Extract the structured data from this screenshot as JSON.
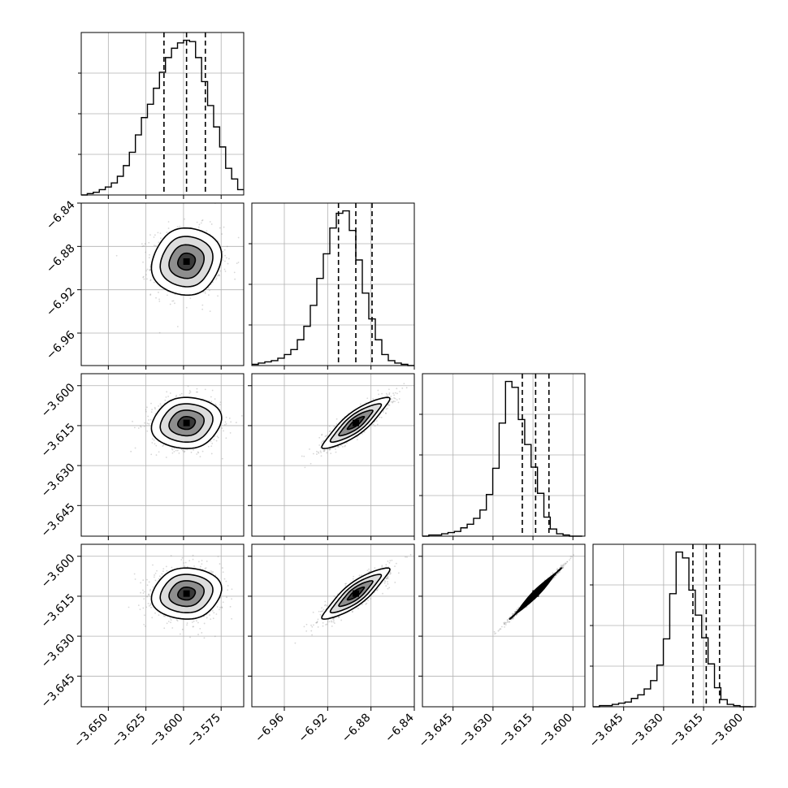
{
  "chart_data": {
    "type": "corner",
    "title": "",
    "parameters": [
      {
        "label": "",
        "range": [
          -3.668,
          -3.56
        ],
        "ticks": [
          -3.65,
          -3.625,
          -3.6,
          -3.575
        ],
        "tick_labels": [
          "−3.650",
          "−3.625",
          "−3.600",
          "−3.575"
        ],
        "quantiles": [
          -3.613,
          -3.598,
          -3.5855
        ],
        "mean": -3.598,
        "sd": 0.0115
      },
      {
        "label": "",
        "range": [
          -6.99,
          -6.84
        ],
        "ticks": [
          -6.96,
          -6.92,
          -6.88,
          -6.84
        ],
        "tick_labels": [
          "−6.96",
          "−6.92",
          "−6.88",
          "−6.84"
        ],
        "quantiles": [
          -6.91,
          -6.894,
          -6.879
        ],
        "mean": -6.894,
        "sd": 0.0155
      },
      {
        "label": "",
        "range": [
          -3.6565,
          -3.5955
        ],
        "ticks": [
          -3.645,
          -3.63,
          -3.615,
          -3.6
        ],
        "tick_labels": [
          "−3.645",
          "−3.630",
          "−3.615",
          "−3.600"
        ],
        "quantiles": [
          -3.619,
          -3.614,
          -3.609
        ],
        "mean": -3.614,
        "sd": 0.0048
      },
      {
        "label": "",
        "range": [
          -3.6565,
          -3.5955
        ],
        "ticks": [
          -3.645,
          -3.63,
          -3.615,
          -3.6
        ],
        "tick_labels": [
          "−3.645",
          "−3.630",
          "−3.615",
          "−3.600"
        ],
        "quantiles": [
          -3.619,
          -3.614,
          -3.609
        ],
        "mean": -3.614,
        "sd": 0.0048
      }
    ],
    "histograms": [
      {
        "param": 0,
        "bin_edges": [
          -3.668,
          -3.664,
          -3.66,
          -3.656,
          -3.652,
          -3.648,
          -3.644,
          -3.64,
          -3.636,
          -3.632,
          -3.628,
          -3.624,
          -3.62,
          -3.616,
          -3.612,
          -3.608,
          -3.604,
          -3.6,
          -3.596,
          -3.592,
          -3.588,
          -3.584,
          -3.58,
          -3.576,
          -3.572,
          -3.568,
          -3.564,
          -3.56
        ],
        "counts": [
          0,
          1,
          2,
          4,
          6,
          9,
          14,
          22,
          32,
          45,
          58,
          68,
          80,
          92,
          103,
          110,
          114,
          116,
          115,
          103,
          85,
          67,
          51,
          36,
          20,
          12,
          4
        ]
      },
      {
        "param": 1,
        "bin_edges": [
          -6.99,
          -6.984,
          -6.978,
          -6.972,
          -6.966,
          -6.96,
          -6.954,
          -6.948,
          -6.942,
          -6.936,
          -6.93,
          -6.924,
          -6.918,
          -6.912,
          -6.906,
          -6.9,
          -6.894,
          -6.888,
          -6.882,
          -6.876,
          -6.87,
          -6.864,
          -6.858,
          -6.852,
          -6.846,
          -6.84
        ],
        "counts": [
          1,
          2,
          3,
          4,
          6,
          9,
          13,
          21,
          32,
          49,
          71,
          91,
          112,
          124,
          126,
          110,
          86,
          59,
          38,
          21,
          9,
          4,
          2,
          1,
          0
        ]
      },
      {
        "param": 2,
        "bin_edges": [
          -3.6565,
          -3.6541,
          -3.6517,
          -3.6493,
          -3.6469,
          -3.6445,
          -3.6421,
          -3.6397,
          -3.6373,
          -3.6349,
          -3.6325,
          -3.6301,
          -3.6277,
          -3.6253,
          -3.6229,
          -3.6205,
          -3.6181,
          -3.6157,
          -3.6133,
          -3.6109,
          -3.6085,
          -3.6061,
          -3.6037,
          -3.6013,
          -3.5989,
          -3.5965
        ],
        "counts": [
          0,
          1,
          1,
          2,
          3,
          4,
          7,
          10,
          15,
          22,
          35,
          57,
          95,
          130,
          125,
          98,
          77,
          58,
          36,
          16,
          6,
          2,
          1,
          0,
          0
        ]
      },
      {
        "param": 3,
        "bin_edges": [
          -3.6565,
          -3.6541,
          -3.6517,
          -3.6493,
          -3.6469,
          -3.6445,
          -3.6421,
          -3.6397,
          -3.6373,
          -3.6349,
          -3.6325,
          -3.6301,
          -3.6277,
          -3.6253,
          -3.6229,
          -3.6205,
          -3.6181,
          -3.6157,
          -3.6133,
          -3.6109,
          -3.6085,
          -3.6061,
          -3.6037,
          -3.6013,
          -3.5989,
          -3.5965
        ],
        "counts": [
          0,
          1,
          1,
          2,
          3,
          4,
          7,
          10,
          15,
          22,
          35,
          57,
          95,
          130,
          125,
          98,
          77,
          58,
          36,
          16,
          6,
          2,
          1,
          0,
          0
        ]
      }
    ],
    "pairs": [
      {
        "x_param": 0,
        "y_param": 1,
        "rho": 0.03
      },
      {
        "x_param": 0,
        "y_param": 2,
        "rho": 0.04
      },
      {
        "x_param": 1,
        "y_param": 2,
        "rho": 0.88
      },
      {
        "x_param": 0,
        "y_param": 3,
        "rho": 0.04
      },
      {
        "x_param": 1,
        "y_param": 3,
        "rho": 0.88
      },
      {
        "x_param": 2,
        "y_param": 3,
        "rho": 0.995
      }
    ],
    "contour_levels_sigma": [
      0.5,
      1.0,
      1.5,
      2.0
    ],
    "grid": true
  }
}
